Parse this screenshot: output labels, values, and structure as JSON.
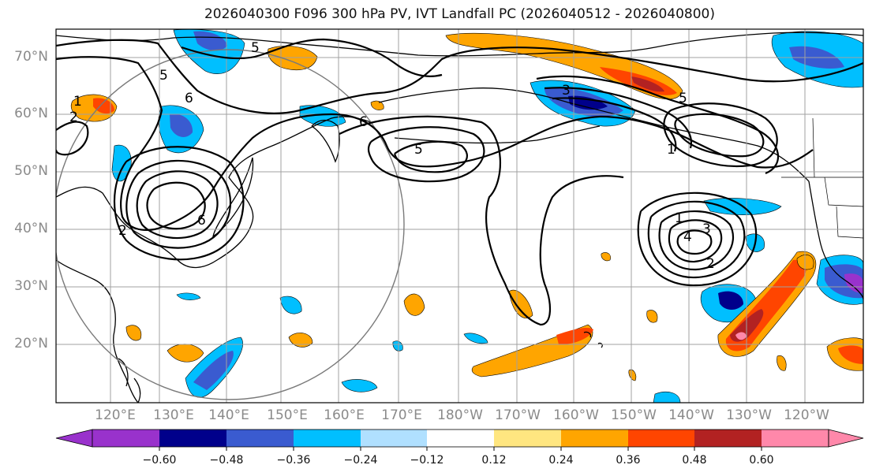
{
  "title": "2026040300 F096 300 hPa PV, IVT Landfall PC (2026040512 - 2026040800)",
  "lat_labels": [
    "70°N",
    "60°N",
    "50°N",
    "40°N",
    "30°N",
    "20°N"
  ],
  "lon_labels": [
    "120°E",
    "130°E",
    "140°E",
    "150°E",
    "160°E",
    "170°E",
    "180°W",
    "170°W",
    "160°W",
    "150°W",
    "140°W",
    "130°W",
    "120°W"
  ],
  "contour_labels": [
    "1",
    "2",
    "5",
    "6",
    "5",
    "5",
    "6",
    "5",
    "3",
    "1",
    "6",
    "2",
    "1",
    "3",
    "4",
    "2"
  ],
  "colorbar": {
    "ticks": [
      "−0.60",
      "−0.48",
      "−0.36",
      "−0.24",
      "−0.12",
      "0.12",
      "0.24",
      "0.36",
      "0.48",
      "0.60"
    ],
    "colors": [
      "#9932cc",
      "#00008b",
      "#3a5bd0",
      "#00bfff",
      "#b0e0ff",
      "#ffffff",
      "#ffe680",
      "#ffa500",
      "#ff4500",
      "#b22222",
      "#ff88aa"
    ]
  }
}
